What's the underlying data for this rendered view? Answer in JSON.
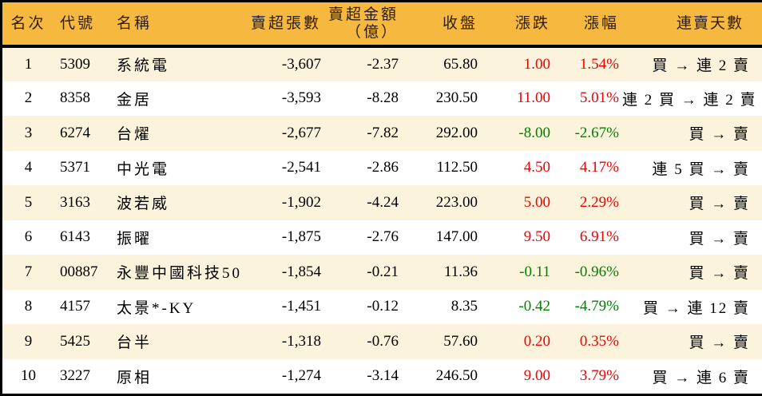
{
  "colors": {
    "up": "#ee0000",
    "down": "#008000",
    "header_bg": "#f6b83e",
    "row_alt_bg": "#fcf3dc",
    "row_bg": "#ffffff",
    "border": "#000000",
    "header_text": "#2b1d0e",
    "body_text": "#000000"
  },
  "chart_data": {
    "type": "table",
    "title": "",
    "columns": [
      {
        "key": "rank",
        "label": "名次",
        "align": "center"
      },
      {
        "key": "code",
        "label": "代號",
        "align": "left"
      },
      {
        "key": "name",
        "label": "名稱",
        "align": "left"
      },
      {
        "key": "sell_volume",
        "label": "賣超張數",
        "align": "right"
      },
      {
        "key": "sell_amount",
        "label": "賣超金額",
        "label2": "（億）",
        "align": "right"
      },
      {
        "key": "close",
        "label": "收盤",
        "align": "right"
      },
      {
        "key": "change",
        "label": "漲跌",
        "align": "right"
      },
      {
        "key": "change_pct",
        "label": "漲幅",
        "align": "right"
      },
      {
        "key": "streak",
        "label": "連賣天數",
        "align": "right"
      }
    ],
    "rows": [
      {
        "rank": "1",
        "code": "5309",
        "name": "系統電",
        "sell_volume": "-3,607",
        "sell_amount": "-2.37",
        "close": "65.80",
        "change": "1.00",
        "change_pct": "1.54%",
        "streak": "買 → 連 2 賣"
      },
      {
        "rank": "2",
        "code": "8358",
        "name": "金居",
        "sell_volume": "-3,593",
        "sell_amount": "-8.28",
        "close": "230.50",
        "change": "11.00",
        "change_pct": "5.01%",
        "streak": "連 2 買 → 連 2 賣"
      },
      {
        "rank": "3",
        "code": "6274",
        "name": "台燿",
        "sell_volume": "-2,677",
        "sell_amount": "-7.82",
        "close": "292.00",
        "change": "-8.00",
        "change_pct": "-2.67%",
        "streak": "買 → 賣"
      },
      {
        "rank": "4",
        "code": "5371",
        "name": "中光電",
        "sell_volume": "-2,541",
        "sell_amount": "-2.86",
        "close": "112.50",
        "change": "4.50",
        "change_pct": "4.17%",
        "streak": "連 5 買 → 賣"
      },
      {
        "rank": "5",
        "code": "3163",
        "name": "波若威",
        "sell_volume": "-1,902",
        "sell_amount": "-4.24",
        "close": "223.00",
        "change": "5.00",
        "change_pct": "2.29%",
        "streak": "買 → 賣"
      },
      {
        "rank": "6",
        "code": "6143",
        "name": "振曜",
        "sell_volume": "-1,875",
        "sell_amount": "-2.76",
        "close": "147.00",
        "change": "9.50",
        "change_pct": "6.91%",
        "streak": "買 → 賣"
      },
      {
        "rank": "7",
        "code": "00887",
        "name": "永豐中國科技50大",
        "sell_volume": "-1,854",
        "sell_amount": "-0.21",
        "close": "11.36",
        "change": "-0.11",
        "change_pct": "-0.96%",
        "streak": "買 → 賣"
      },
      {
        "rank": "8",
        "code": "4157",
        "name": "太景*-KY",
        "sell_volume": "-1,451",
        "sell_amount": "-0.12",
        "close": "8.35",
        "change": "-0.42",
        "change_pct": "-4.79%",
        "streak": "買 → 連 12 賣"
      },
      {
        "rank": "9",
        "code": "5425",
        "name": "台半",
        "sell_volume": "-1,318",
        "sell_amount": "-0.76",
        "close": "57.60",
        "change": "0.20",
        "change_pct": "0.35%",
        "streak": "買 → 賣"
      },
      {
        "rank": "10",
        "code": "3227",
        "name": "原相",
        "sell_volume": "-1,274",
        "sell_amount": "-3.14",
        "close": "246.50",
        "change": "9.00",
        "change_pct": "3.79%",
        "streak": "買 → 連 6 賣"
      }
    ]
  }
}
